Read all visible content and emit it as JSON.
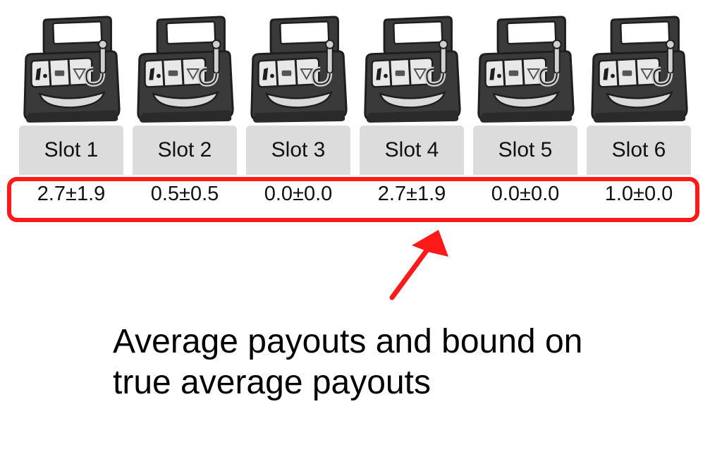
{
  "slots": [
    {
      "label": "Slot 1",
      "payout": "2.7±1.9"
    },
    {
      "label": "Slot 2",
      "payout": "0.5±0.5"
    },
    {
      "label": "Slot 3",
      "payout": "0.0±0.0"
    },
    {
      "label": "Slot 4",
      "payout": "2.7±1.9"
    },
    {
      "label": "Slot 5",
      "payout": "0.0±0.0"
    },
    {
      "label": "Slot 6",
      "payout": "1.0±0.0"
    }
  ],
  "annotation": {
    "line1": "Average payouts and bound on",
    "line2": "true average payouts"
  },
  "colors": {
    "highlight": "#ff1a1a",
    "button_bg": "#dcdcdc",
    "machine_body": "#3a3a3a"
  },
  "icons": {
    "machine": "slot-machine-icon"
  }
}
